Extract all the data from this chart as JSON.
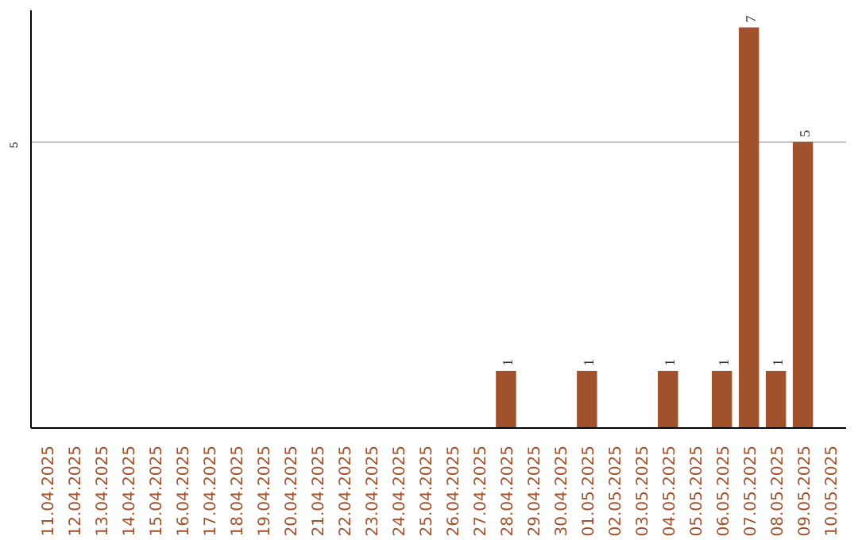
{
  "chart_data": {
    "type": "bar",
    "categories": [
      "11.04.2025",
      "12.04.2025",
      "13.04.2025",
      "14.04.2025",
      "15.04.2025",
      "16.04.2025",
      "17.04.2025",
      "18.04.2025",
      "19.04.2025",
      "20.04.2025",
      "21.04.2025",
      "22.04.2025",
      "23.04.2025",
      "24.04.2025",
      "25.04.2025",
      "26.04.2025",
      "27.04.2025",
      "28.04.2025",
      "29.04.2025",
      "30.04.2025",
      "01.05.2025",
      "02.05.2025",
      "03.05.2025",
      "04.05.2025",
      "05.05.2025",
      "06.05.2025",
      "07.05.2025",
      "08.05.2025",
      "09.05.2025",
      "10.05.2025"
    ],
    "values": [
      null,
      null,
      null,
      null,
      null,
      null,
      null,
      null,
      null,
      null,
      null,
      null,
      null,
      null,
      null,
      null,
      null,
      1,
      null,
      null,
      1,
      null,
      null,
      1,
      null,
      1,
      7,
      1,
      5,
      null
    ],
    "color": "#a0522d",
    "ylim": [
      0,
      7.3
    ],
    "yticks": [
      5
    ],
    "grid": "y",
    "data_labels": true
  }
}
